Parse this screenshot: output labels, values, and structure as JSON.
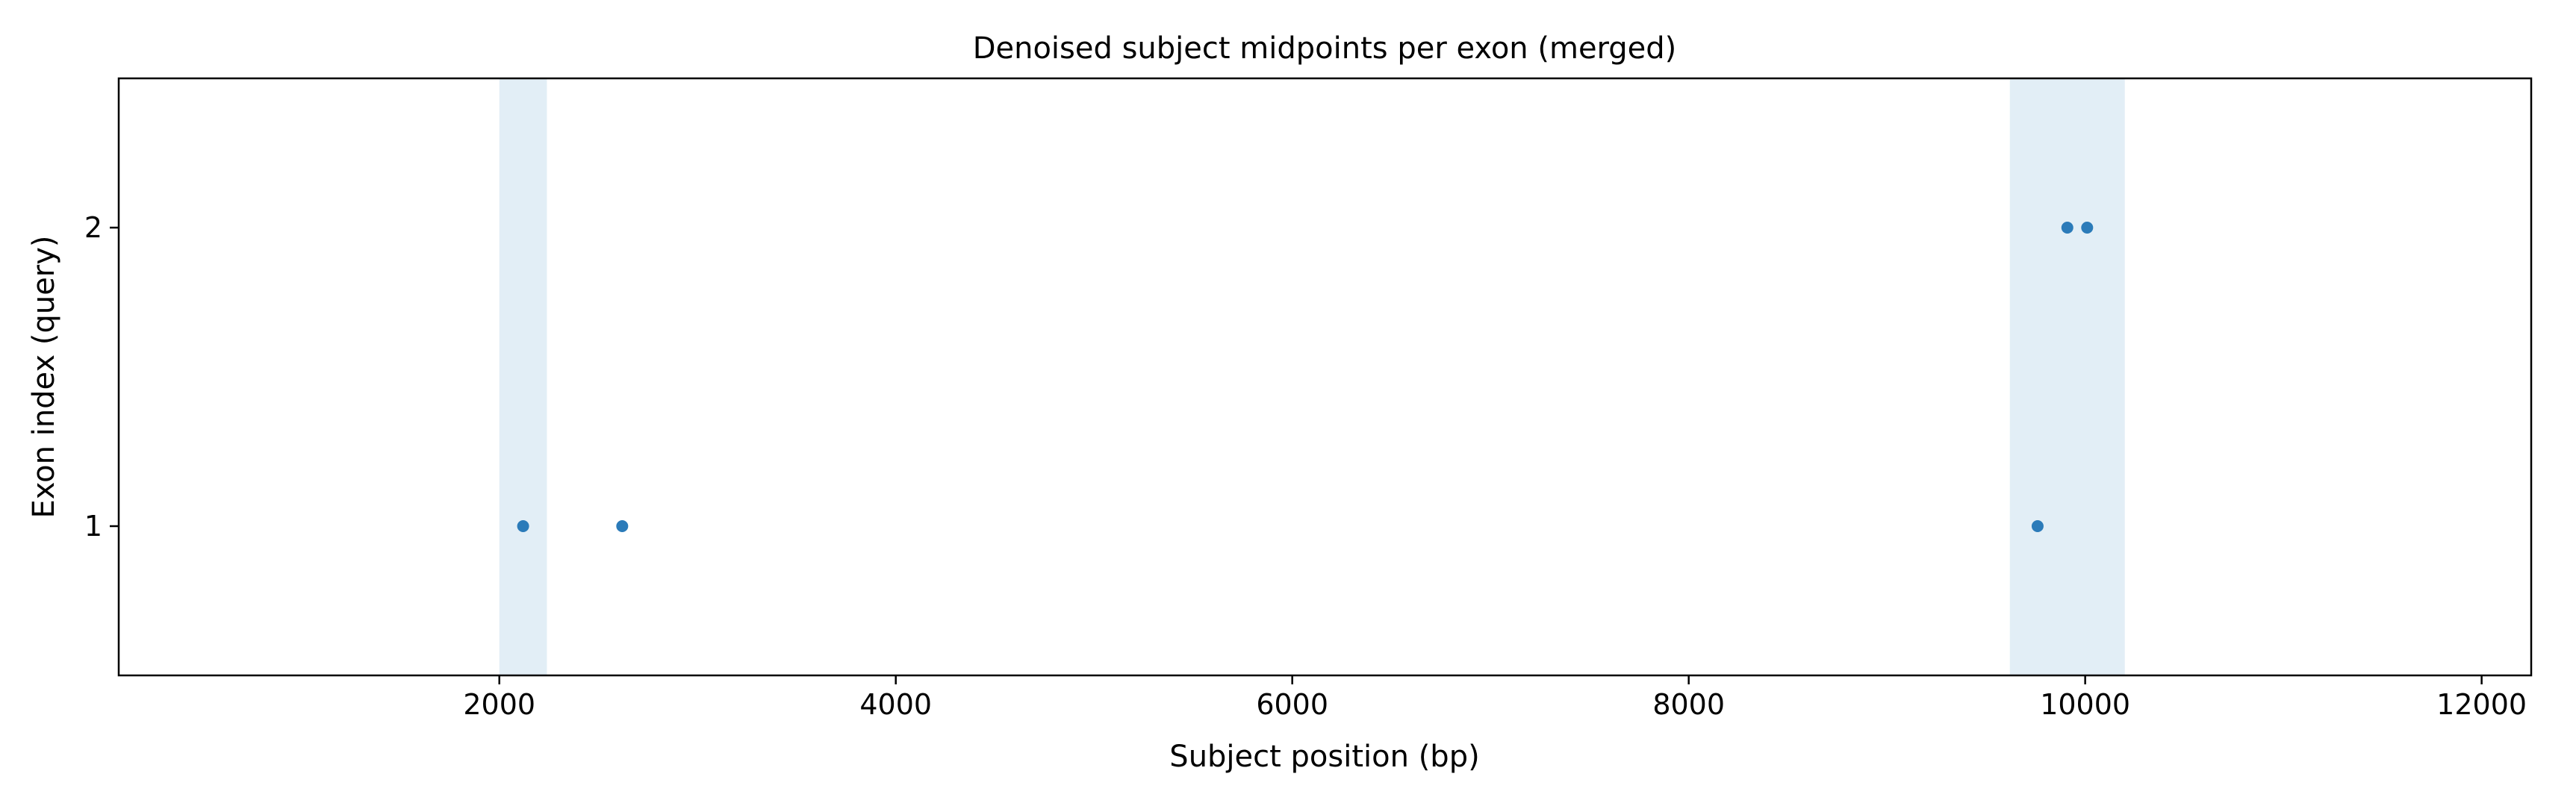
{
  "chart_data": {
    "type": "scatter",
    "title": "Denoised subject midpoints per exon (merged)",
    "xlabel": "Subject position (bp)",
    "ylabel": "Exon index (query)",
    "xlim": [
      80,
      12250
    ],
    "ylim": [
      0.5,
      2.5
    ],
    "xticks": [
      2000,
      4000,
      6000,
      8000,
      10000,
      12000
    ],
    "yticks": [
      1,
      2
    ],
    "grid": false,
    "legend": "none",
    "colors": {
      "points": "#2b7bb9",
      "bands": "#e2eef6",
      "axes": "#000000"
    },
    "bands": [
      {
        "x0": 2000,
        "x1": 2240
      },
      {
        "x0": 9620,
        "x1": 10200
      }
    ],
    "series": [
      {
        "points": [
          {
            "x": 2120,
            "y": 1
          },
          {
            "x": 2620,
            "y": 1
          },
          {
            "x": 9760,
            "y": 1
          },
          {
            "x": 9910,
            "y": 2
          },
          {
            "x": 10010,
            "y": 2
          }
        ]
      }
    ]
  }
}
